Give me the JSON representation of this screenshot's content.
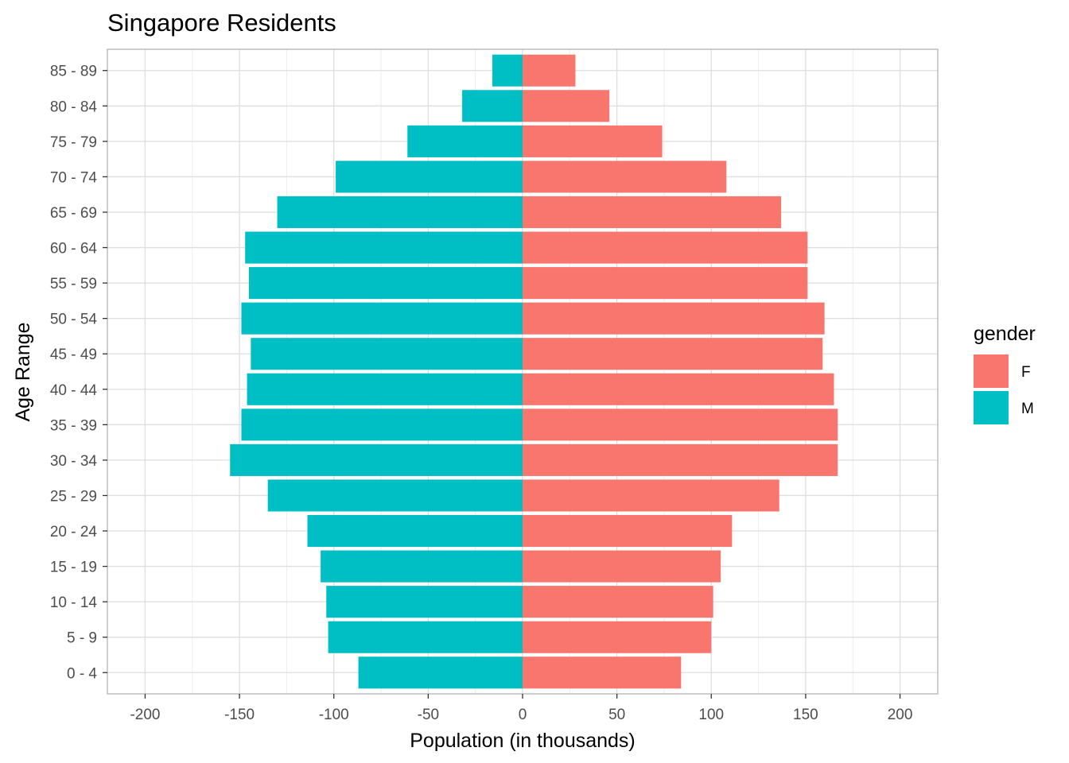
{
  "chart_data": {
    "type": "bar",
    "orientation": "horizontal",
    "layout": "population-pyramid",
    "title": "Singapore Residents",
    "xlabel": "Population (in thousands)",
    "ylabel": "Age Range",
    "xlim": [
      -220,
      220
    ],
    "xticks": [
      -200,
      -150,
      -100,
      -50,
      0,
      50,
      100,
      150,
      200
    ],
    "categories": [
      "0 - 4",
      "5 - 9",
      "10 - 14",
      "15 - 19",
      "20 - 24",
      "25 - 29",
      "30 - 34",
      "35 - 39",
      "40 - 44",
      "45 - 49",
      "50 - 54",
      "55 - 59",
      "60 - 64",
      "65 - 69",
      "70 - 74",
      "75 - 79",
      "80 - 84",
      "85 - 89"
    ],
    "series": [
      {
        "name": "F",
        "color": "#F8766D",
        "values": [
          84,
          100,
          101,
          105,
          111,
          136,
          167,
          167,
          165,
          159,
          160,
          151,
          151,
          137,
          108,
          74,
          46,
          28
        ]
      },
      {
        "name": "M",
        "color": "#00BFC4",
        "values": [
          -87,
          -103,
          -104,
          -107,
          -114,
          -135,
          -155,
          -149,
          -146,
          -144,
          -149,
          -145,
          -147,
          -130,
          -99,
          -61,
          -32,
          -16
        ]
      }
    ],
    "legend": {
      "title": "gender",
      "position": "right"
    },
    "grid": true,
    "theme": "light"
  }
}
